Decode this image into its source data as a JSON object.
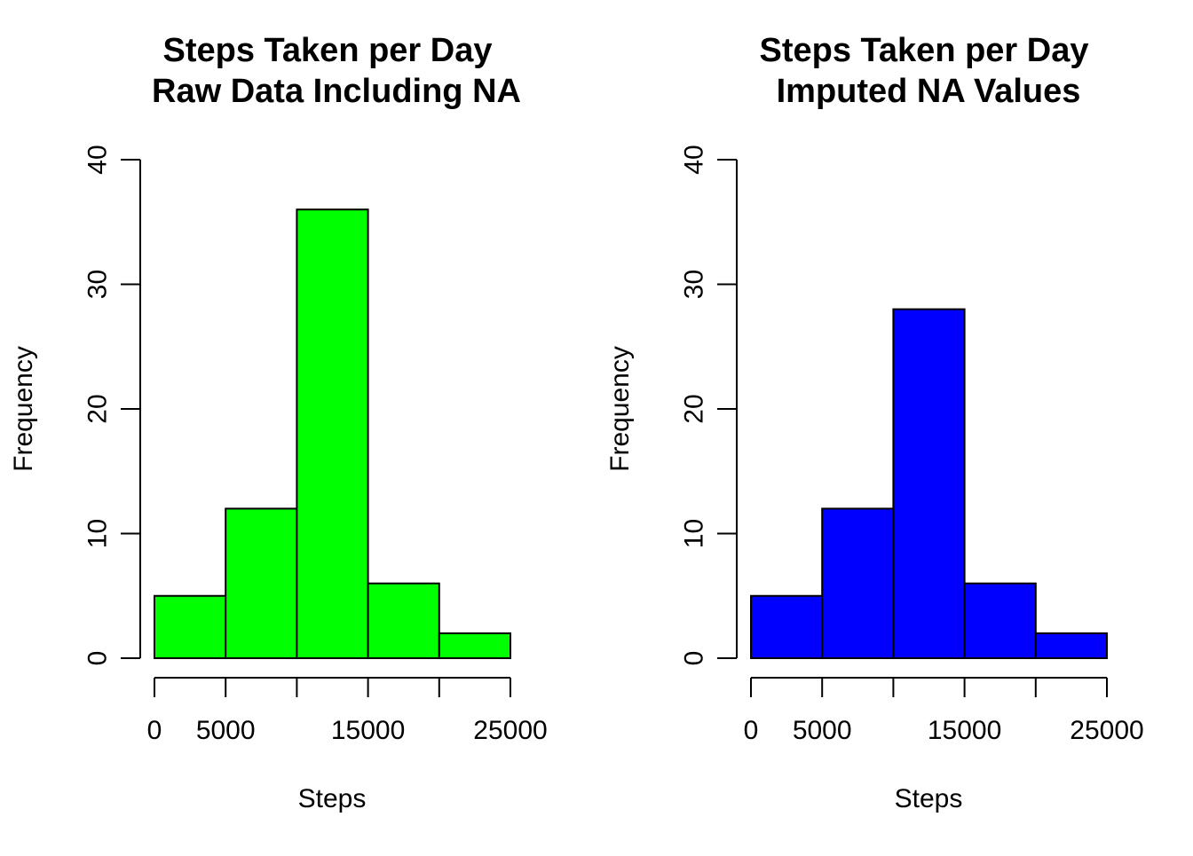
{
  "chart_data": [
    {
      "type": "bar",
      "title_lines": [
        "Steps Taken per Day",
        "Raw Data Including NA"
      ],
      "xlabel": "Steps",
      "ylabel": "Frequency",
      "bin_edges": [
        0,
        5000,
        10000,
        15000,
        20000,
        25000
      ],
      "values": [
        5,
        12,
        36,
        6,
        2
      ],
      "color": "#00ff00",
      "x_tick_values": [
        0,
        5000,
        10000,
        15000,
        20000,
        25000
      ],
      "x_tick_labels": [
        "0",
        "5000",
        "",
        "15000",
        "",
        "25000"
      ],
      "y_ticks": [
        0,
        10,
        20,
        30,
        40
      ],
      "y_tick_labels": [
        "0",
        "10",
        "20",
        "30",
        "40"
      ],
      "xlim": [
        0,
        25000
      ],
      "ylim": [
        0,
        40
      ],
      "grid": false,
      "legend": "none"
    },
    {
      "type": "bar",
      "title_lines": [
        "Steps Taken per Day",
        "Imputed NA Values"
      ],
      "xlabel": "Steps",
      "ylabel": "Frequency",
      "bin_edges": [
        0,
        5000,
        10000,
        15000,
        20000,
        25000
      ],
      "values": [
        5,
        12,
        28,
        6,
        2
      ],
      "color": "#0000ff",
      "x_tick_values": [
        0,
        5000,
        10000,
        15000,
        20000,
        25000
      ],
      "x_tick_labels": [
        "0",
        "5000",
        "",
        "15000",
        "",
        "25000"
      ],
      "y_ticks": [
        0,
        10,
        20,
        30,
        40
      ],
      "y_tick_labels": [
        "0",
        "10",
        "20",
        "30",
        "40"
      ],
      "xlim": [
        0,
        25000
      ],
      "ylim": [
        0,
        40
      ],
      "grid": false,
      "legend": "none"
    }
  ]
}
